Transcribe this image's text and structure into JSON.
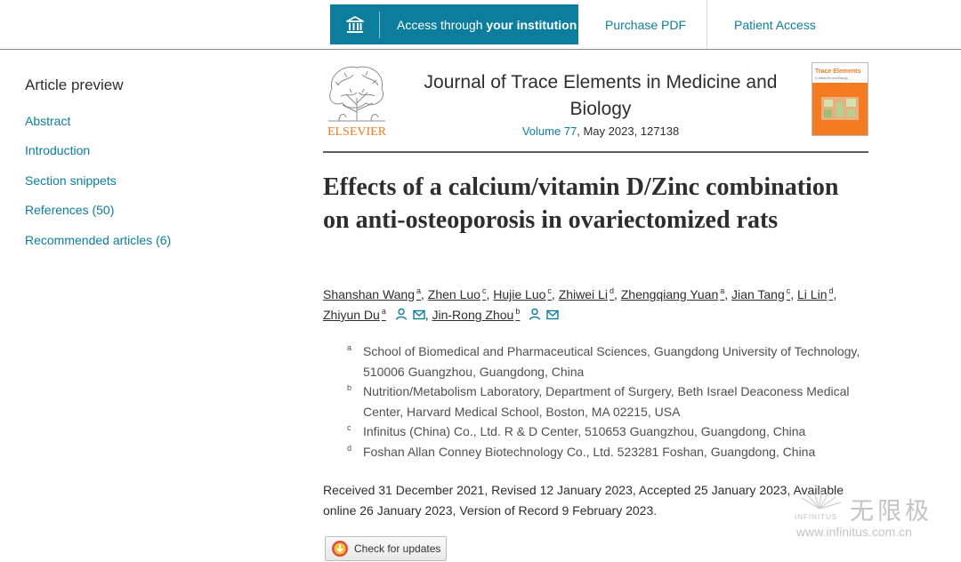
{
  "topbar": {
    "institution_prefix": "Access through ",
    "institution_bold": "your institution",
    "purchase_pdf": "Purchase PDF",
    "patient_access": "Patient Access",
    "icon": "institution-building-icon"
  },
  "sidebar": {
    "title": "Article preview",
    "items": [
      {
        "label": "Abstract"
      },
      {
        "label": "Introduction"
      },
      {
        "label": "Section snippets"
      },
      {
        "label": "References (50)"
      },
      {
        "label": "Recommended articles (6)"
      }
    ]
  },
  "journal": {
    "publisher": "ELSEVIER",
    "title": "Journal of Trace Elements in Medicine and Biology",
    "volume_link": "Volume 77",
    "meta_rest": ", May 2023, 127138",
    "cover_title": "Trace Elements",
    "cover_subtitle": "in Medicine and Biology",
    "accent": "#0c7d9c",
    "publisher_color": "#f07b1c",
    "cover_color": "#f47b20"
  },
  "article": {
    "title": "Effects of a calcium/vitamin D/Zinc combination on anti-osteoporosis in ovariectomized rats",
    "authors": [
      {
        "name": "Shanshan Wang",
        "sup": "a"
      },
      {
        "name": "Zhen Luo",
        "sup": "c"
      },
      {
        "name": "Hujie Luo",
        "sup": "c"
      },
      {
        "name": "Zhiwei Li",
        "sup": "d"
      },
      {
        "name": "Zhengqiang Yuan",
        "sup": "a"
      },
      {
        "name": "Jian Tang",
        "sup": "c"
      },
      {
        "name": "Li Lin",
        "sup": "d"
      },
      {
        "name": "Zhiyun Du",
        "sup": "a"
      },
      {
        "name": "Jin-Rong Zhou",
        "sup": "b"
      }
    ],
    "affiliations": [
      {
        "key": "a",
        "text": "School of Biomedical and Pharmaceutical Sciences, Guangdong University of Technology, 510006 Guangzhou, Guangdong, China"
      },
      {
        "key": "b",
        "text": "Nutrition/Metabolism Laboratory, Department of Surgery, Beth Israel Deaconess Medical Center, Harvard Medical School, Boston, MA 02215, USA"
      },
      {
        "key": "c",
        "text": "Infinitus (China) Co., Ltd. R & D Center, 510653 Guangzhou, Guangdong, China"
      },
      {
        "key": "d",
        "text": "Foshan Allan Conney Biotechnology Co., Ltd. 523281 Foshan, Guangdong, China"
      }
    ],
    "dates": "Received 31 December 2021, Revised 12 January 2023, Accepted 25 January 2023, Available online 26 January 2023, Version of Record 9 February 2023.",
    "check_updates": "Check for updates"
  },
  "watermark": {
    "chinese": "无限极",
    "brand": "INFINITUS",
    "url": "www.infinitus.com.cn"
  }
}
